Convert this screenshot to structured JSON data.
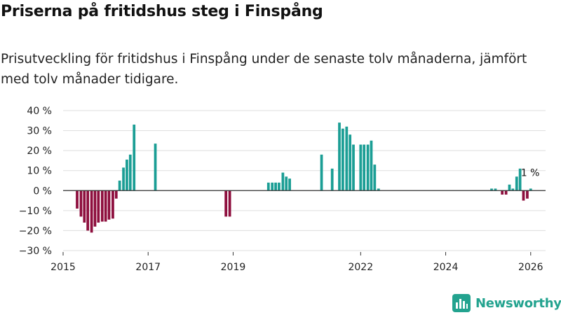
{
  "header": {
    "title": "Priserna på fritidshus steg i Finspång",
    "subtitle": "Prisutveckling för fritidshus i Finspång under de senaste tolv månaderna, jämfört med tolv månader tidigare."
  },
  "colors": {
    "positive": "#1b9e95",
    "negative": "#8e0f3e",
    "grid": "#dddddd",
    "zero_line": "#333333",
    "logo": "#23a38f"
  },
  "chart_data": {
    "type": "bar",
    "ylim": [
      -30,
      40
    ],
    "yticks": [
      40,
      30,
      20,
      10,
      0,
      -10,
      -20,
      -30
    ],
    "ytick_labels": [
      "40 %",
      "30 %",
      "20 %",
      "10 %",
      "0 %",
      "−10 %",
      "−20 %",
      "−30 %"
    ],
    "xlim": [
      2015.0,
      2026.35
    ],
    "xticks": [
      2015,
      2017,
      2019,
      2022,
      2024,
      2026
    ],
    "xtick_labels": [
      "2015",
      "2017",
      "2019",
      "2022",
      "2024",
      "2026"
    ],
    "x": [
      2015.33,
      2015.42,
      2015.5,
      2015.58,
      2015.67,
      2015.75,
      2015.83,
      2015.92,
      2016.0,
      2016.08,
      2016.17,
      2016.25,
      2016.33,
      2016.42,
      2016.5,
      2016.58,
      2016.67,
      2017.17,
      2018.83,
      2018.92,
      2019.83,
      2019.92,
      2020.0,
      2020.08,
      2020.17,
      2020.25,
      2020.33,
      2021.08,
      2021.33,
      2021.5,
      2021.58,
      2021.67,
      2021.75,
      2021.83,
      2022.0,
      2022.08,
      2022.17,
      2022.25,
      2022.33,
      2022.42,
      2025.08,
      2025.17,
      2025.33,
      2025.42,
      2025.5,
      2025.58,
      2025.67,
      2025.75,
      2025.83,
      2025.92,
      2026.0
    ],
    "values": [
      -9,
      -13,
      -16,
      -20,
      -21,
      -18,
      -16,
      -15.5,
      -15.5,
      -14.5,
      -14,
      -4,
      5,
      11.5,
      15.5,
      18,
      33,
      23.5,
      -13,
      -13,
      4,
      4,
      4,
      4,
      9,
      7,
      6,
      18,
      11,
      34,
      31,
      32,
      28,
      23,
      23,
      23,
      23,
      25,
      13,
      1,
      1,
      1,
      -2,
      -2,
      3,
      1,
      7,
      11,
      -5,
      -4,
      1
    ],
    "bar_width_years": 0.062,
    "annotation": {
      "text": "1 %",
      "x": 2026.0,
      "y": 1
    }
  },
  "logo": {
    "text": "Newsworthy",
    "icon": "bar-chart-logo-icon"
  }
}
